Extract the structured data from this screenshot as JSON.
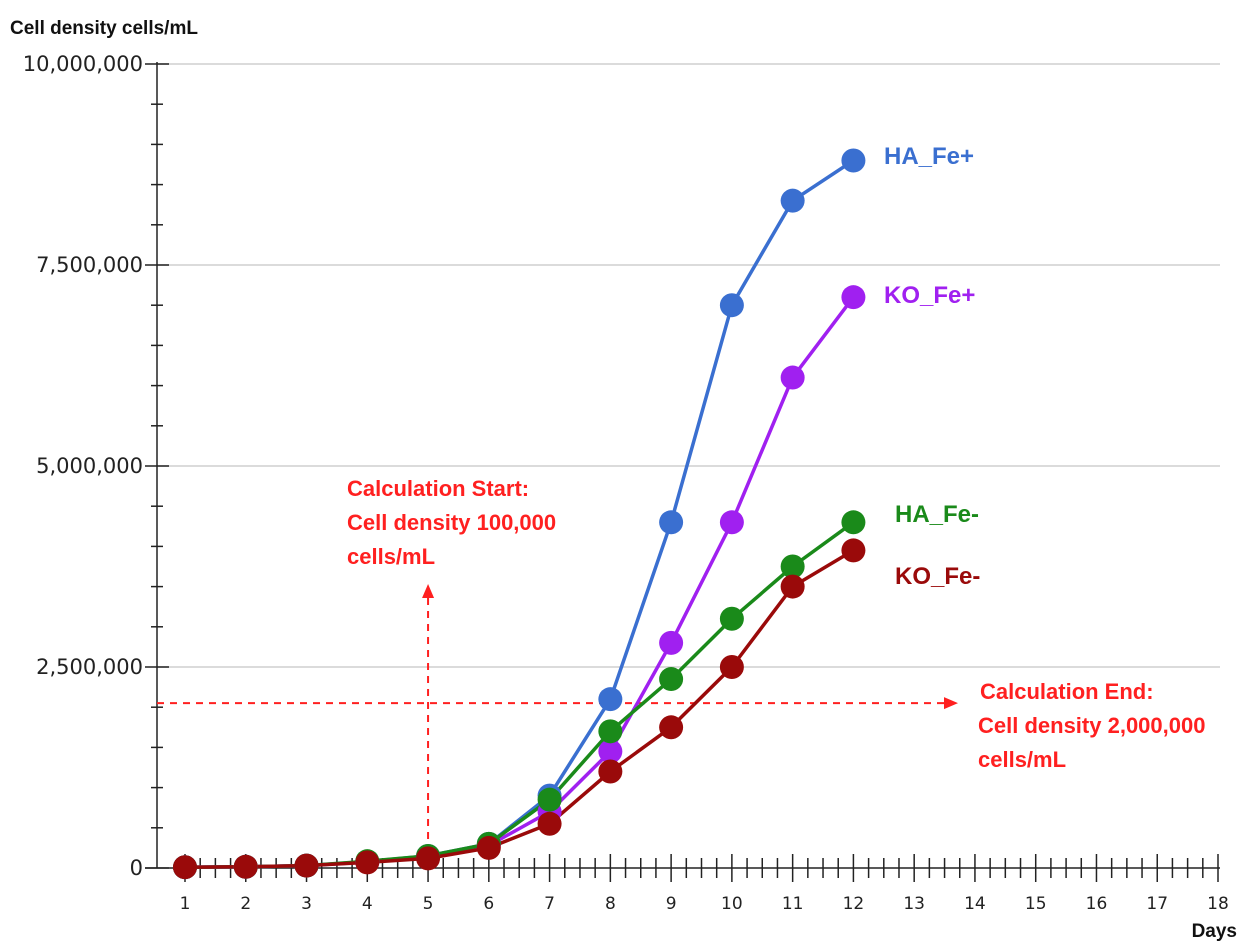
{
  "chart_data": {
    "type": "line",
    "ylabel": "Cell density cells/mL",
    "xlabel": "Days",
    "xlim": [
      1,
      18
    ],
    "ylim": [
      0,
      10000000
    ],
    "x_ticks": [
      1,
      2,
      3,
      4,
      5,
      6,
      7,
      8,
      9,
      10,
      11,
      12,
      13,
      14,
      15,
      16,
      17,
      18
    ],
    "y_ticks": [
      {
        "value": 0,
        "label": "0"
      },
      {
        "value": 2500000,
        "label": "2,500,000"
      },
      {
        "value": 5000000,
        "label": "5,000,000"
      },
      {
        "value": 7500000,
        "label": "7,500,000"
      },
      {
        "value": 10000000,
        "label": "10,000,000"
      }
    ],
    "grid": "horizontal",
    "series": [
      {
        "name": "HA_Fe+",
        "color": "#3a6fd0",
        "x": [
          1,
          2,
          3,
          4,
          5,
          6,
          7,
          8,
          9,
          10,
          11,
          12
        ],
        "y": [
          10000,
          15000,
          30000,
          80000,
          150000,
          300000,
          900000,
          2100000,
          4300000,
          7000000,
          8300000,
          8800000
        ]
      },
      {
        "name": "KO_Fe+",
        "color": "#a020f0",
        "x": [
          1,
          2,
          3,
          4,
          5,
          6,
          7,
          8,
          9,
          10,
          11,
          12
        ],
        "y": [
          10000,
          15000,
          30000,
          75000,
          140000,
          280000,
          700000,
          1450000,
          2800000,
          4300000,
          6100000,
          7100000
        ]
      },
      {
        "name": "HA_Fe-",
        "color": "#1a8a1a",
        "x": [
          1,
          2,
          3,
          4,
          5,
          6,
          7,
          8,
          9,
          10,
          11,
          12
        ],
        "y": [
          10000,
          15000,
          30000,
          85000,
          150000,
          300000,
          850000,
          1700000,
          2350000,
          3100000,
          3750000,
          4300000
        ]
      },
      {
        "name": "KO_Fe-",
        "color": "#9a0a0a",
        "x": [
          1,
          2,
          3,
          4,
          5,
          6,
          7,
          8,
          9,
          10,
          11,
          12
        ],
        "y": [
          10000,
          15000,
          30000,
          70000,
          120000,
          250000,
          550000,
          1200000,
          1750000,
          2500000,
          3500000,
          3950000
        ]
      }
    ],
    "annotations": {
      "start": {
        "lines": [
          "Calculation Start:",
          "Cell density 100,000",
          "cells/mL"
        ],
        "x": 5,
        "threshold": 100000,
        "color": "#ff2020"
      },
      "end": {
        "lines": [
          "Calculation End:",
          "Cell density 2,000,000",
          "cells/mL"
        ],
        "y": 2050000,
        "color": "#ff2020"
      }
    }
  }
}
